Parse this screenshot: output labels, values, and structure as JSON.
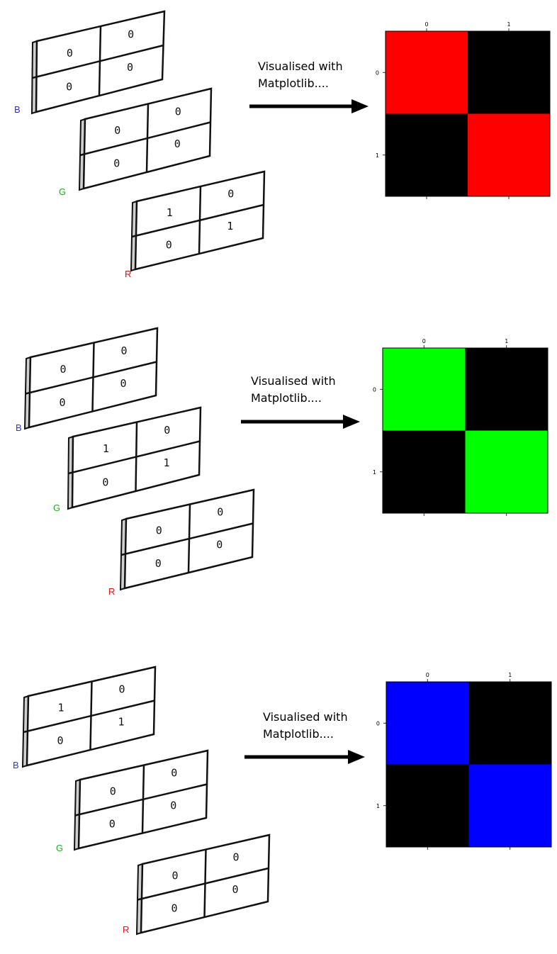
{
  "caption_line1": "Visualised with",
  "caption_line2": "Matplotlib....",
  "channel_colors": {
    "B": "#3333cc",
    "G": "#22aa22",
    "R": "#dd1111"
  },
  "examples": [
    {
      "channels": [
        {
          "label": "B",
          "cells": [
            "0",
            "0",
            "0",
            "0"
          ]
        },
        {
          "label": "G",
          "cells": [
            "0",
            "0",
            "0",
            "0"
          ]
        },
        {
          "label": "R",
          "cells": [
            "1",
            "0",
            "0",
            "1"
          ]
        }
      ],
      "result": {
        "on_color": "#ff0000",
        "matrix": [
          [
            1,
            0
          ],
          [
            0,
            1
          ]
        ],
        "x_ticks": [
          "0",
          "1"
        ],
        "y_ticks": [
          "0",
          "1"
        ]
      }
    },
    {
      "channels": [
        {
          "label": "B",
          "cells": [
            "0",
            "0",
            "0",
            "0"
          ]
        },
        {
          "label": "G",
          "cells": [
            "1",
            "0",
            "0",
            "1"
          ]
        },
        {
          "label": "R",
          "cells": [
            "0",
            "0",
            "0",
            "0"
          ]
        }
      ],
      "result": {
        "on_color": "#00ff00",
        "matrix": [
          [
            1,
            0
          ],
          [
            0,
            1
          ]
        ],
        "x_ticks": [
          "0",
          "1"
        ],
        "y_ticks": [
          "0",
          "1"
        ]
      }
    },
    {
      "channels": [
        {
          "label": "B",
          "cells": [
            "1",
            "0",
            "0",
            "1"
          ]
        },
        {
          "label": "G",
          "cells": [
            "0",
            "0",
            "0",
            "0"
          ]
        },
        {
          "label": "R",
          "cells": [
            "0",
            "0",
            "0",
            "0"
          ]
        }
      ],
      "result": {
        "on_color": "#0000ff",
        "matrix": [
          [
            1,
            0
          ],
          [
            0,
            1
          ]
        ],
        "x_ticks": [
          "0",
          "1"
        ],
        "y_ticks": [
          "0",
          "1"
        ]
      }
    }
  ]
}
